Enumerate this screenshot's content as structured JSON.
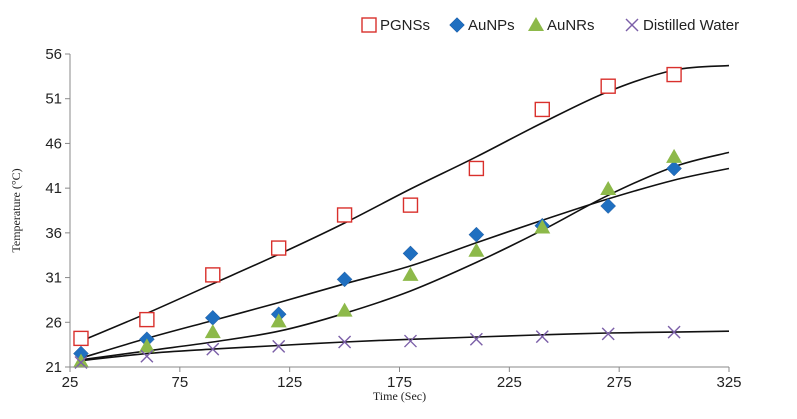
{
  "chart_data": {
    "type": "scatter",
    "xlabel": "Time (Sec)",
    "ylabel": "Temperature (°C)",
    "xlim": [
      25,
      325
    ],
    "ylim": [
      21,
      56
    ],
    "xticks": [
      25,
      75,
      125,
      175,
      225,
      275,
      325
    ],
    "yticks": [
      21,
      26,
      31,
      36,
      41,
      46,
      51,
      56
    ],
    "grid": false,
    "legend_position": "top-right",
    "trendlines": true,
    "series": [
      {
        "name": "PGNSs",
        "marker": "open-square",
        "color": "#d9302c",
        "x": [
          30,
          60,
          90,
          120,
          150,
          180,
          210,
          240,
          270,
          300
        ],
        "y": [
          24.2,
          26.3,
          31.3,
          34.3,
          38.0,
          39.1,
          43.2,
          49.8,
          52.4,
          53.7
        ]
      },
      {
        "name": "AuNPs",
        "marker": "diamond",
        "color": "#1f6fc0",
        "x": [
          30,
          60,
          90,
          120,
          150,
          180,
          210,
          240,
          270,
          300
        ],
        "y": [
          22.5,
          24.1,
          26.5,
          26.9,
          30.8,
          33.7,
          35.8,
          36.8,
          39.0,
          43.2
        ]
      },
      {
        "name": "AuNRs",
        "marker": "triangle",
        "color": "#8db94a",
        "x": [
          30,
          60,
          90,
          120,
          150,
          180,
          210,
          240,
          270,
          300
        ],
        "y": [
          21.6,
          23.3,
          24.9,
          26.1,
          27.3,
          31.3,
          34.0,
          36.6,
          40.9,
          44.5
        ]
      },
      {
        "name": "Distilled Water",
        "marker": "x",
        "color": "#7b5fa8",
        "x": [
          30,
          60,
          90,
          120,
          150,
          180,
          210,
          240,
          270,
          300
        ],
        "y": [
          21.5,
          22.2,
          23.0,
          23.3,
          23.8,
          23.9,
          24.1,
          24.4,
          24.7,
          24.9
        ]
      }
    ],
    "trend": [
      {
        "series": "PGNSs",
        "x": [
          30,
          60,
          90,
          120,
          150,
          180,
          210,
          240,
          270,
          300,
          325
        ],
        "y": [
          23.9,
          27.0,
          30.3,
          33.6,
          37.1,
          40.9,
          44.5,
          48.3,
          51.8,
          54.2,
          54.7
        ]
      },
      {
        "series": "AuNPs",
        "x": [
          30,
          60,
          90,
          120,
          150,
          180,
          210,
          240,
          270,
          300,
          325
        ],
        "y": [
          22.0,
          24.2,
          26.2,
          28.2,
          30.3,
          32.3,
          34.9,
          37.4,
          39.8,
          41.9,
          43.2
        ]
      },
      {
        "series": "AuNRs",
        "x": [
          30,
          60,
          90,
          120,
          150,
          180,
          210,
          240,
          270,
          300,
          325
        ],
        "y": [
          21.8,
          22.8,
          23.8,
          25.0,
          27.0,
          29.5,
          32.7,
          36.3,
          40.2,
          43.4,
          45.0
        ]
      },
      {
        "series": "Distilled Water",
        "x": [
          30,
          60,
          90,
          120,
          150,
          180,
          210,
          240,
          270,
          300,
          325
        ],
        "y": [
          21.7,
          22.5,
          23.0,
          23.4,
          23.8,
          24.1,
          24.35,
          24.6,
          24.8,
          24.9,
          25.0
        ]
      }
    ]
  }
}
